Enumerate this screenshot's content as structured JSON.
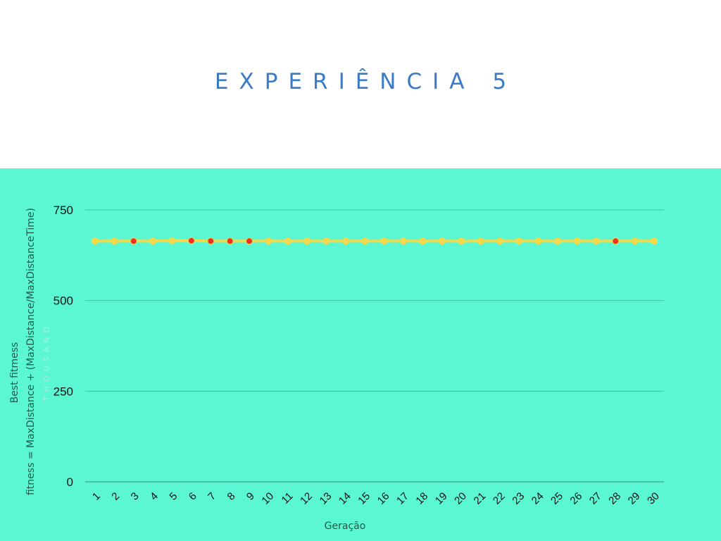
{
  "title": "EXPERIÊNCIA 5",
  "colors": {
    "title": "#3a7bc8",
    "panel": "#5af7d2",
    "line": "#f5d94b",
    "marker_red": "#e8332a",
    "marker_yellow": "#f5d94b",
    "grid": "#3cc4a6"
  },
  "chart_data": {
    "type": "line",
    "xlabel": "Geração",
    "ylabel": [
      "Best fitmess",
      "fitness =  MaxDistance + (MaxDistance/MaxDistanceTime)"
    ],
    "ylim": [
      0,
      750
    ],
    "y_ticks": [
      "0",
      "250",
      "500",
      "750"
    ],
    "grid": true,
    "categories": [
      "1",
      "2",
      "3",
      "4",
      "5",
      "6",
      "7",
      "8",
      "9",
      "10",
      "11",
      "12",
      "13",
      "14",
      "15",
      "16",
      "17",
      "18",
      "19",
      "20",
      "21",
      "22",
      "23",
      "24",
      "25",
      "26",
      "27",
      "28",
      "29",
      "30"
    ],
    "series": [
      {
        "values": [
          664,
          664,
          664,
          664,
          665,
          665,
          664,
          664,
          664,
          664,
          664,
          664,
          664,
          664,
          664,
          664,
          664,
          664,
          664,
          664,
          664,
          664,
          664,
          664,
          664,
          664,
          664,
          664,
          664,
          664
        ],
        "marker_colors": [
          "yellow",
          "yellow",
          "red",
          "yellow",
          "yellow",
          "red",
          "red",
          "red",
          "red",
          "yellow",
          "yellow",
          "yellow",
          "yellow",
          "yellow",
          "yellow",
          "yellow",
          "yellow",
          "yellow",
          "yellow",
          "yellow",
          "yellow",
          "yellow",
          "yellow",
          "yellow",
          "yellow",
          "yellow",
          "yellow",
          "red",
          "yellow",
          "yellow"
        ]
      }
    ]
  }
}
